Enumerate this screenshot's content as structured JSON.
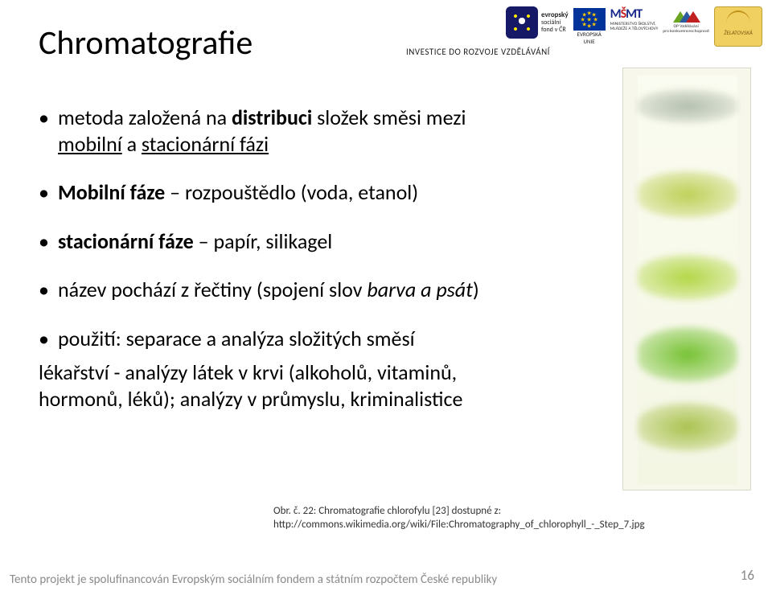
{
  "logos": {
    "esf_lines": [
      "evropský",
      "sociální",
      "fond v ČR"
    ],
    "eu_label": "EVROPSKÁ UNIE",
    "msmt_lines": [
      "MINISTERSTVO ŠKOLSTVÍ,",
      "MLÁDEŽE A TĚLOVÝCHOVY"
    ],
    "opvk_lines": [
      "OP Vzdělávání",
      "pro konkurenceschopnost"
    ],
    "zs_label": "ŽELATOVSKÁ",
    "invest": "INVESTICE DO ROZVOJE VZDĚLÁVÁNÍ"
  },
  "title": "Chromatografie",
  "bullets": {
    "b1_pre": "metoda založená na ",
    "b1_bold": "distribuci",
    "b1_mid": " složek směsi mezi ",
    "b1_u1": "mobilní",
    "b1_and": " a ",
    "b1_u2": "stacionární fázi",
    "b2_bold": "Mobilní fáze",
    "b2_rest": " – rozpouštědlo (voda, etanol)",
    "b3_bold": "stacionární fáze",
    "b3_rest": " – papír, silikagel",
    "b4_pre": "název pochází z řečtiny (spojení slov ",
    "b4_it": "barva a psát",
    "b4_post": ")",
    "b5": "použití: separace a analýza složitých směsí",
    "para": "lékařství - analýzy látek v krvi (alkoholů, vitaminů, hormonů, léků);  analýzy v průmyslu, kriminalistice"
  },
  "figure": {
    "bands": [
      {
        "class": "b1",
        "color": "#788c78"
      },
      {
        "class": "b2",
        "color": "#b4c83c"
      },
      {
        "class": "b3",
        "color": "#aad232"
      },
      {
        "class": "b4",
        "color": "#6ebe28"
      },
      {
        "class": "b5",
        "color": "#96b428"
      }
    ],
    "caption_l1": "Obr. č. 22: Chromatografie chlorofylu [23] dostupné z:",
    "caption_l2": "http://commons.wikimedia.org/wiki/File:Chromatography_of_chlorophyll_-_Step_7.jpg"
  },
  "footer": "Tento projekt je spolufinancován Evropským sociálním fondem a státním rozpočtem České republiky",
  "page": "16"
}
